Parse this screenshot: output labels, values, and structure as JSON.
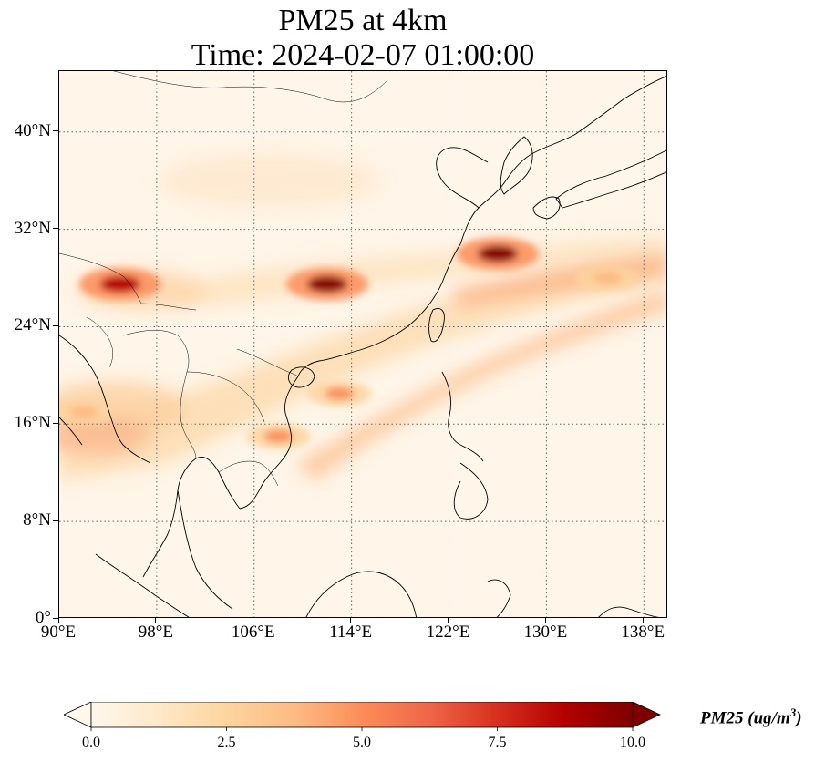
{
  "title": {
    "line1": "PM25 at 4km",
    "line2": "Time: 2024-02-07 01:00:00"
  },
  "map": {
    "projection": "PlateCarree",
    "lon_range": [
      90,
      140
    ],
    "lat_range": [
      0,
      45
    ],
    "gridlines": "dotted",
    "lat_ticks": [
      "0°",
      "8°N",
      "16°N",
      "24°N",
      "32°N",
      "40°N"
    ],
    "lon_ticks": [
      "90°E",
      "98°E",
      "106°E",
      "114°E",
      "122°E",
      "130°E",
      "138°E"
    ],
    "field": "PM25",
    "colormap": "OrRd",
    "hotspots": [
      {
        "lon": 112,
        "lat": 27.5,
        "value": 9.5
      },
      {
        "lon": 126,
        "lat": 30,
        "value": 9.5
      },
      {
        "lon": 95,
        "lat": 27.5,
        "value": 9.0
      },
      {
        "lon": 113,
        "lat": 18.5,
        "value": 5.5
      },
      {
        "lon": 108,
        "lat": 15,
        "value": 5.0
      },
      {
        "lon": 135,
        "lat": 28,
        "value": 4.0
      },
      {
        "lon": 92,
        "lat": 17,
        "value": 3.5
      }
    ]
  },
  "colorbar": {
    "label": "PM25 (ug/m$^3$)",
    "label_text": "PM25 (ug/m",
    "label_sup": "3",
    "label_close": ")",
    "ticks": [
      "0.0",
      "2.5",
      "5.0",
      "7.5",
      "10.0"
    ],
    "min": 0,
    "max": 10,
    "extend": "both",
    "colors": [
      "#fff7ec",
      "#fee8c8",
      "#fdd49e",
      "#fdbb84",
      "#fc8d59",
      "#ef6548",
      "#d7301f",
      "#b30000",
      "#7f0000"
    ]
  }
}
